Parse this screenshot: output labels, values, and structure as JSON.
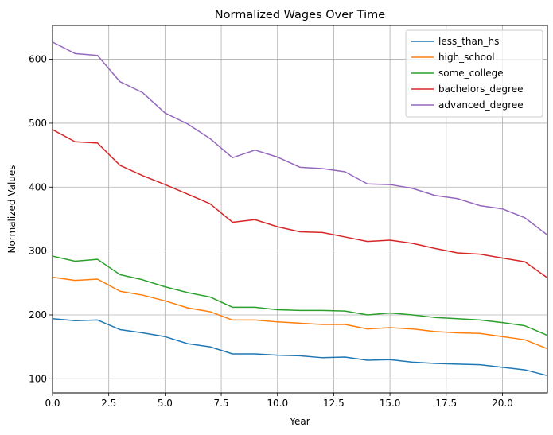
{
  "chart_data": {
    "type": "line",
    "title": "Normalized Wages Over Time",
    "xlabel": "Year",
    "ylabel": "Normalized Values",
    "xlim": [
      0,
      22
    ],
    "ylim": [
      78,
      653
    ],
    "xticks": [
      0.0,
      2.5,
      5.0,
      7.5,
      10.0,
      12.5,
      15.0,
      17.5,
      20.0
    ],
    "xtick_labels": [
      "0.0",
      "2.5",
      "5.0",
      "7.5",
      "10.0",
      "12.5",
      "15.0",
      "17.5",
      "20.0"
    ],
    "yticks": [
      100,
      200,
      300,
      400,
      500,
      600
    ],
    "ytick_labels": [
      "100",
      "200",
      "300",
      "400",
      "500",
      "600"
    ],
    "grid": true,
    "legend_position": "top-right",
    "x": [
      0,
      1,
      2,
      3,
      4,
      5,
      6,
      7,
      8,
      9,
      10,
      11,
      12,
      13,
      14,
      15,
      16,
      17,
      18,
      19,
      20,
      21,
      22
    ],
    "series": [
      {
        "name": "less_than_hs",
        "color": "#1f77b4",
        "values": [
          194,
          191,
          192,
          177,
          172,
          166,
          155,
          150,
          139,
          139,
          137,
          136,
          133,
          134,
          129,
          130,
          126,
          124,
          123,
          122,
          118,
          114,
          105
        ]
      },
      {
        "name": "high_school",
        "color": "#ff7f0e",
        "values": [
          259,
          254,
          256,
          237,
          231,
          222,
          211,
          205,
          192,
          192,
          189,
          187,
          185,
          185,
          178,
          180,
          178,
          174,
          172,
          171,
          166,
          161,
          147
        ]
      },
      {
        "name": "some_college",
        "color": "#2ca02c",
        "values": [
          292,
          284,
          287,
          263,
          255,
          244,
          235,
          228,
          212,
          212,
          208,
          207,
          207,
          206,
          200,
          203,
          200,
          196,
          194,
          192,
          188,
          183,
          168
        ]
      },
      {
        "name": "bachelors_degree",
        "color": "#d62728",
        "values": [
          490,
          471,
          469,
          434,
          418,
          404,
          389,
          374,
          345,
          349,
          338,
          330,
          329,
          322,
          315,
          317,
          312,
          304,
          297,
          295,
          289,
          283,
          258
        ]
      },
      {
        "name": "advanced_degree",
        "color": "#9467bd",
        "values": [
          627,
          609,
          606,
          565,
          548,
          516,
          499,
          476,
          446,
          458,
          447,
          431,
          429,
          424,
          405,
          404,
          398,
          387,
          382,
          371,
          366,
          352,
          325
        ]
      }
    ]
  }
}
